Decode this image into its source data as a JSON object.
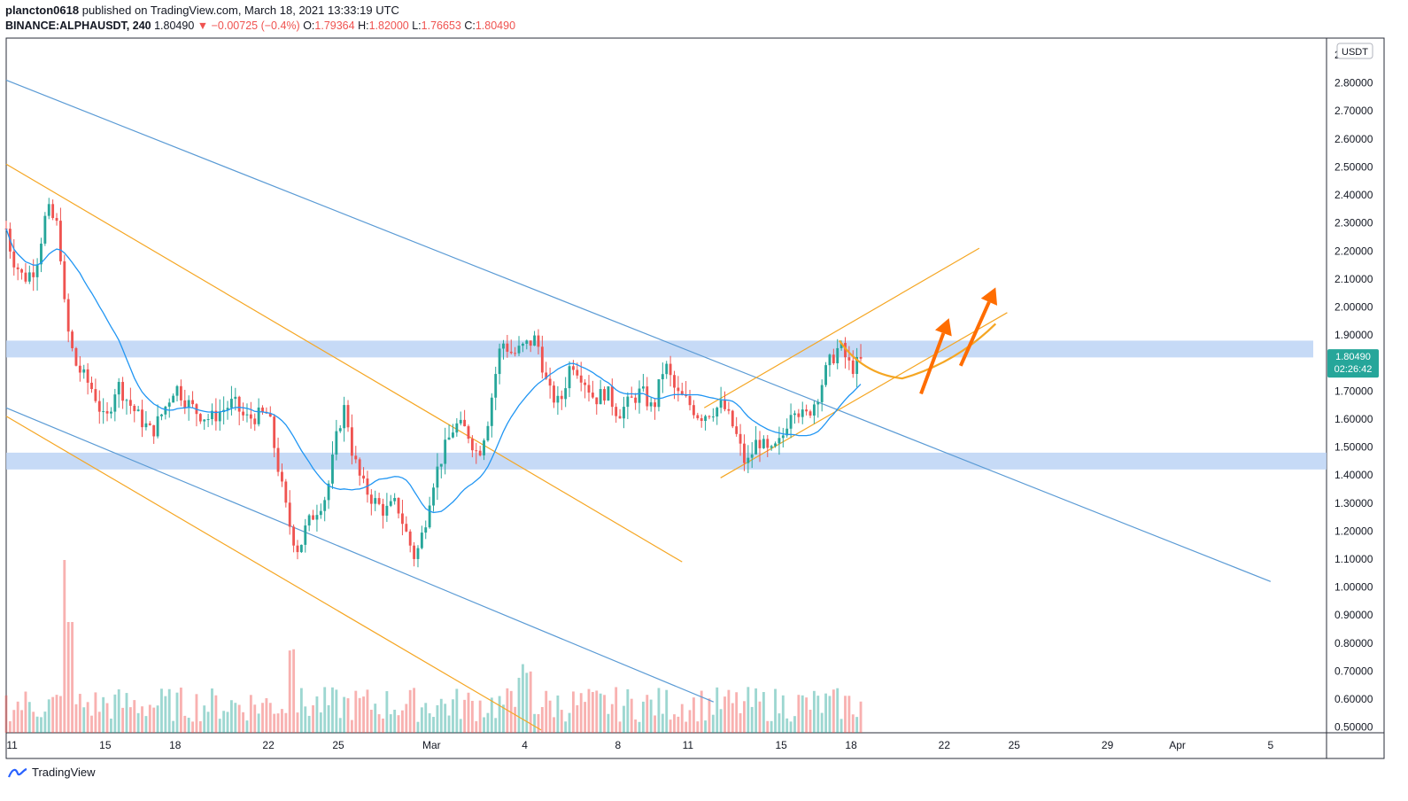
{
  "header": {
    "publisher": "plancton0618",
    "published_text": "published on TradingView.com, March 18, 2021 13:33:19 UTC",
    "symbol": "BINANCE:ALPHAUSDT, 240",
    "last": "1.80490",
    "change": "−0.00725 (−0.4%)",
    "o_label": "O:",
    "o_value": "1.79364",
    "h_label": "H:",
    "h_value": "1.82000",
    "l_label": "L:",
    "l_value": "1.76653",
    "c_label": "C:",
    "c_value": "1.80490"
  },
  "footer": {
    "brand": "TradingView"
  },
  "colors": {
    "up": "#26a69a",
    "down": "#ef5350",
    "ma": "#2196f3",
    "channel_blue": "#5b9bd5",
    "channel_orange": "#f5a623",
    "zone": "#bcd3f5",
    "arrow": "#ff6d00"
  },
  "chart_data": {
    "type": "candlestick",
    "currency_label": "USDT",
    "last_price_label": "1.80490",
    "countdown_label": "02:26:42",
    "ylim": [
      0.48,
      2.96
    ],
    "y_ticks": [
      "2.90000",
      "2.80000",
      "2.70000",
      "2.60000",
      "2.50000",
      "2.40000",
      "2.30000",
      "2.20000",
      "2.10000",
      "2.00000",
      "1.90000",
      "1.80000",
      "1.70000",
      "1.60000",
      "1.50000",
      "1.40000",
      "1.30000",
      "1.20000",
      "1.10000",
      "1.00000",
      "0.90000",
      "0.80000",
      "0.70000",
      "0.60000",
      "0.50000"
    ],
    "x_ticks": [
      {
        "label": "11",
        "day": 11
      },
      {
        "label": "15",
        "day": 15
      },
      {
        "label": "18",
        "day": 18
      },
      {
        "label": "22",
        "day": 22
      },
      {
        "label": "25",
        "day": 25
      },
      {
        "label": "Mar",
        "day": 29
      },
      {
        "label": "4",
        "day": 33
      },
      {
        "label": "8",
        "day": 37
      },
      {
        "label": "11",
        "day": 40
      },
      {
        "label": "15",
        "day": 44
      },
      {
        "label": "18",
        "day": 47
      },
      {
        "label": "22",
        "day": 51
      },
      {
        "label": "25",
        "day": 54
      },
      {
        "label": "29",
        "day": 58
      },
      {
        "label": "Apr",
        "day": 61
      },
      {
        "label": "5",
        "day": 65
      }
    ],
    "x_day_range": [
      10.75,
      67.4
    ],
    "support_resistance_zones": [
      [
        1.82,
        1.88
      ],
      [
        1.42,
        1.48
      ]
    ],
    "trendlines": [
      {
        "color": "blue",
        "points": [
          [
            10.75,
            2.81
          ],
          [
            65,
            1.02
          ]
        ]
      },
      {
        "color": "blue",
        "points": [
          [
            10.75,
            1.64
          ],
          [
            41.1,
            0.59
          ]
        ]
      },
      {
        "color": "orange",
        "points": [
          [
            10.75,
            2.51
          ],
          [
            39.75,
            1.09
          ]
        ]
      },
      {
        "color": "orange",
        "points": [
          [
            10.75,
            1.61
          ],
          [
            33.7,
            0.49
          ]
        ]
      },
      {
        "color": "orange",
        "points": [
          [
            41.4,
            1.39
          ],
          [
            53.7,
            1.98
          ]
        ]
      },
      {
        "color": "orange",
        "points": [
          [
            40.7,
            1.64
          ],
          [
            52.5,
            2.21
          ]
        ]
      }
    ],
    "projection_curve": [
      [
        46.5,
        1.88
      ],
      [
        47.5,
        1.76
      ],
      [
        49.2,
        1.745
      ],
      [
        51.5,
        1.8
      ],
      [
        53.2,
        1.94
      ]
    ],
    "arrows": [
      {
        "from": [
          50,
          1.69
        ],
        "to": [
          51.2,
          1.96
        ]
      },
      {
        "from": [
          51.7,
          1.79
        ],
        "to": [
          53.2,
          2.07
        ]
      }
    ]
  }
}
